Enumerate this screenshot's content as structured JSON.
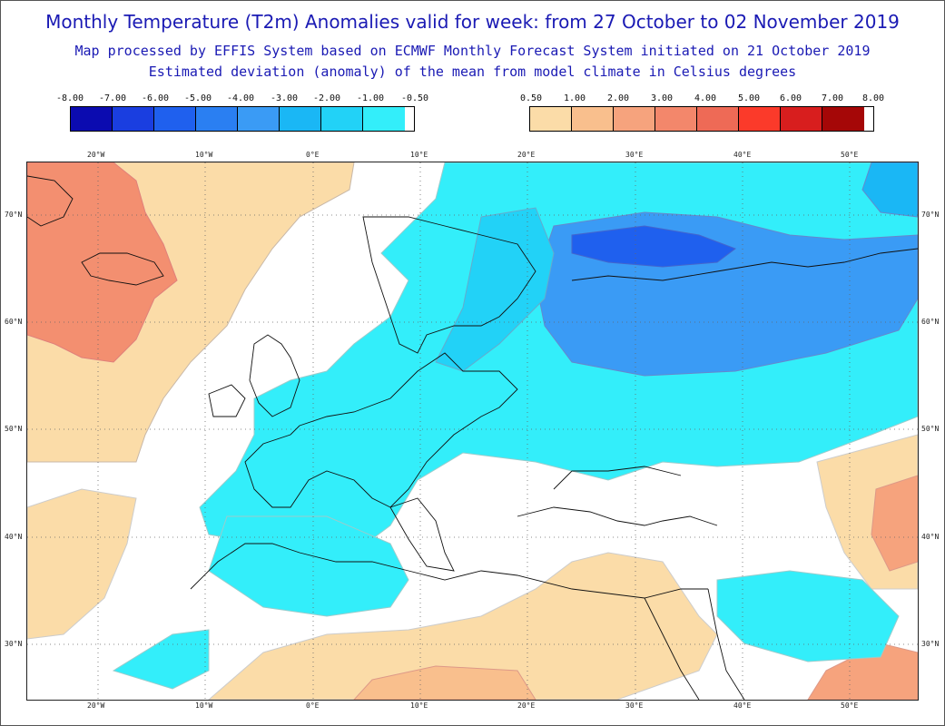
{
  "header": {
    "title": "Monthly Temperature (T2m) Anomalies valid for week: from 27 October to 02 November 2019",
    "subtitle1": "Map processed by EFFIS System based on ECMWF Monthly Forecast System initiated on 21 October 2019",
    "subtitle2": "Estimated deviation (anomaly) of the mean from model climate in Celsius degrees"
  },
  "legend_negative": {
    "labels": [
      "-8.00",
      "-7.00",
      "-6.00",
      "-5.00",
      "-4.00",
      "-3.00",
      "-2.00",
      "-1.00",
      "-0.50"
    ],
    "colors": [
      "#0b0bb0",
      "#1a3ee0",
      "#1f60ee",
      "#2a7ff2",
      "#3a9bf5",
      "#1ab7f5",
      "#22d2f7",
      "#33eefa"
    ]
  },
  "legend_positive": {
    "labels": [
      "0.50",
      "1.00",
      "2.00",
      "3.00",
      "4.00",
      "5.00",
      "6.00",
      "7.00",
      "8.00"
    ],
    "colors": [
      "#fbdca8",
      "#f9bf8d",
      "#f6a37d",
      "#f3876b",
      "#ee6a56",
      "#fb3a2a",
      "#d81e1e",
      "#a50707"
    ]
  },
  "map": {
    "lon_labels": [
      "20°W",
      "10°W",
      "0°E",
      "10°E",
      "20°E",
      "30°E",
      "40°E",
      "50°E"
    ],
    "lat_labels": [
      "70°N",
      "60°N",
      "50°N",
      "40°N",
      "30°N"
    ]
  }
}
